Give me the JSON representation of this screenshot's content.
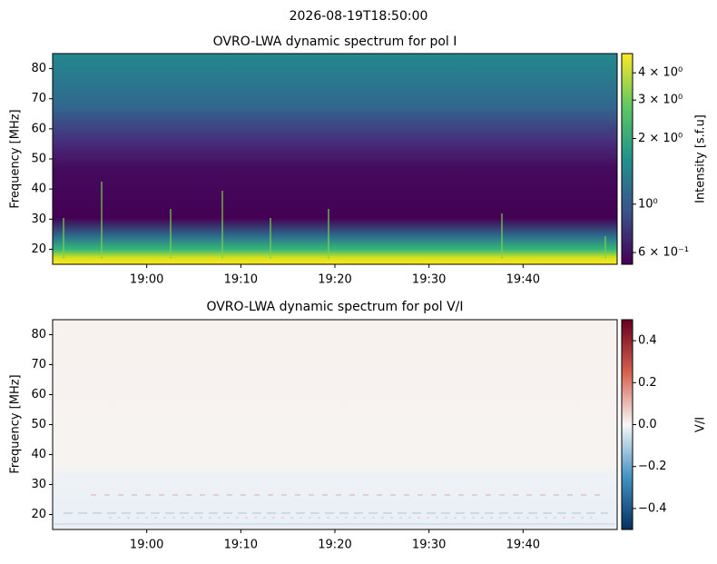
{
  "title": "2026-08-19T18:50:00",
  "chart_data": [
    {
      "type": "heatmap",
      "title": "OVRO-LWA dynamic spectrum for pol I",
      "ylabel": "Frequency [MHz]",
      "xlim": [
        1130,
        1190
      ],
      "xticks": [
        {
          "value": 1140,
          "label": "19:00"
        },
        {
          "value": 1150,
          "label": "19:10"
        },
        {
          "value": 1160,
          "label": "19:20"
        },
        {
          "value": 1170,
          "label": "19:30"
        },
        {
          "value": 1180,
          "label": "19:40"
        }
      ],
      "ylim": [
        15,
        85
      ],
      "yticks": [
        20,
        30,
        40,
        50,
        60,
        70,
        80
      ],
      "colorbar": {
        "label": "Intensity [s.f.u]",
        "scale": "log",
        "lim": [
          0.53,
          4.9
        ],
        "ticks": [
          {
            "value": 0.6,
            "label": "6 × 10⁻¹"
          },
          {
            "value": 1,
            "label": "10⁰"
          },
          {
            "value": 2,
            "label": "2 × 10⁰"
          },
          {
            "value": 3,
            "label": "3 × 10⁰"
          },
          {
            "value": 4,
            "label": "4 × 10⁰"
          }
        ],
        "colors": [
          "#440154",
          "#3b528b",
          "#21918c",
          "#5ec962",
          "#fde725"
        ]
      }
    },
    {
      "type": "heatmap",
      "title": "OVRO-LWA dynamic spectrum for pol V/I",
      "ylabel": "Frequency [MHz]",
      "xlim": [
        1130,
        1190
      ],
      "xticks": [
        {
          "value": 1140,
          "label": "19:00"
        },
        {
          "value": 1150,
          "label": "19:10"
        },
        {
          "value": 1160,
          "label": "19:20"
        },
        {
          "value": 1170,
          "label": "19:30"
        },
        {
          "value": 1180,
          "label": "19:40"
        }
      ],
      "ylim": [
        15,
        85
      ],
      "yticks": [
        20,
        30,
        40,
        50,
        60,
        70,
        80
      ],
      "colorbar": {
        "label": "V/I",
        "scale": "linear",
        "lim": [
          -0.5,
          0.5
        ],
        "ticks": [
          {
            "value": -0.4,
            "label": "−0.4"
          },
          {
            "value": -0.2,
            "label": "−0.2"
          },
          {
            "value": 0,
            "label": "0.0"
          },
          0.2,
          0.4
        ],
        "colors": [
          "#053061",
          "#4393c3",
          "#f7f7f7",
          "#d6604d",
          "#67001f"
        ]
      }
    }
  ]
}
